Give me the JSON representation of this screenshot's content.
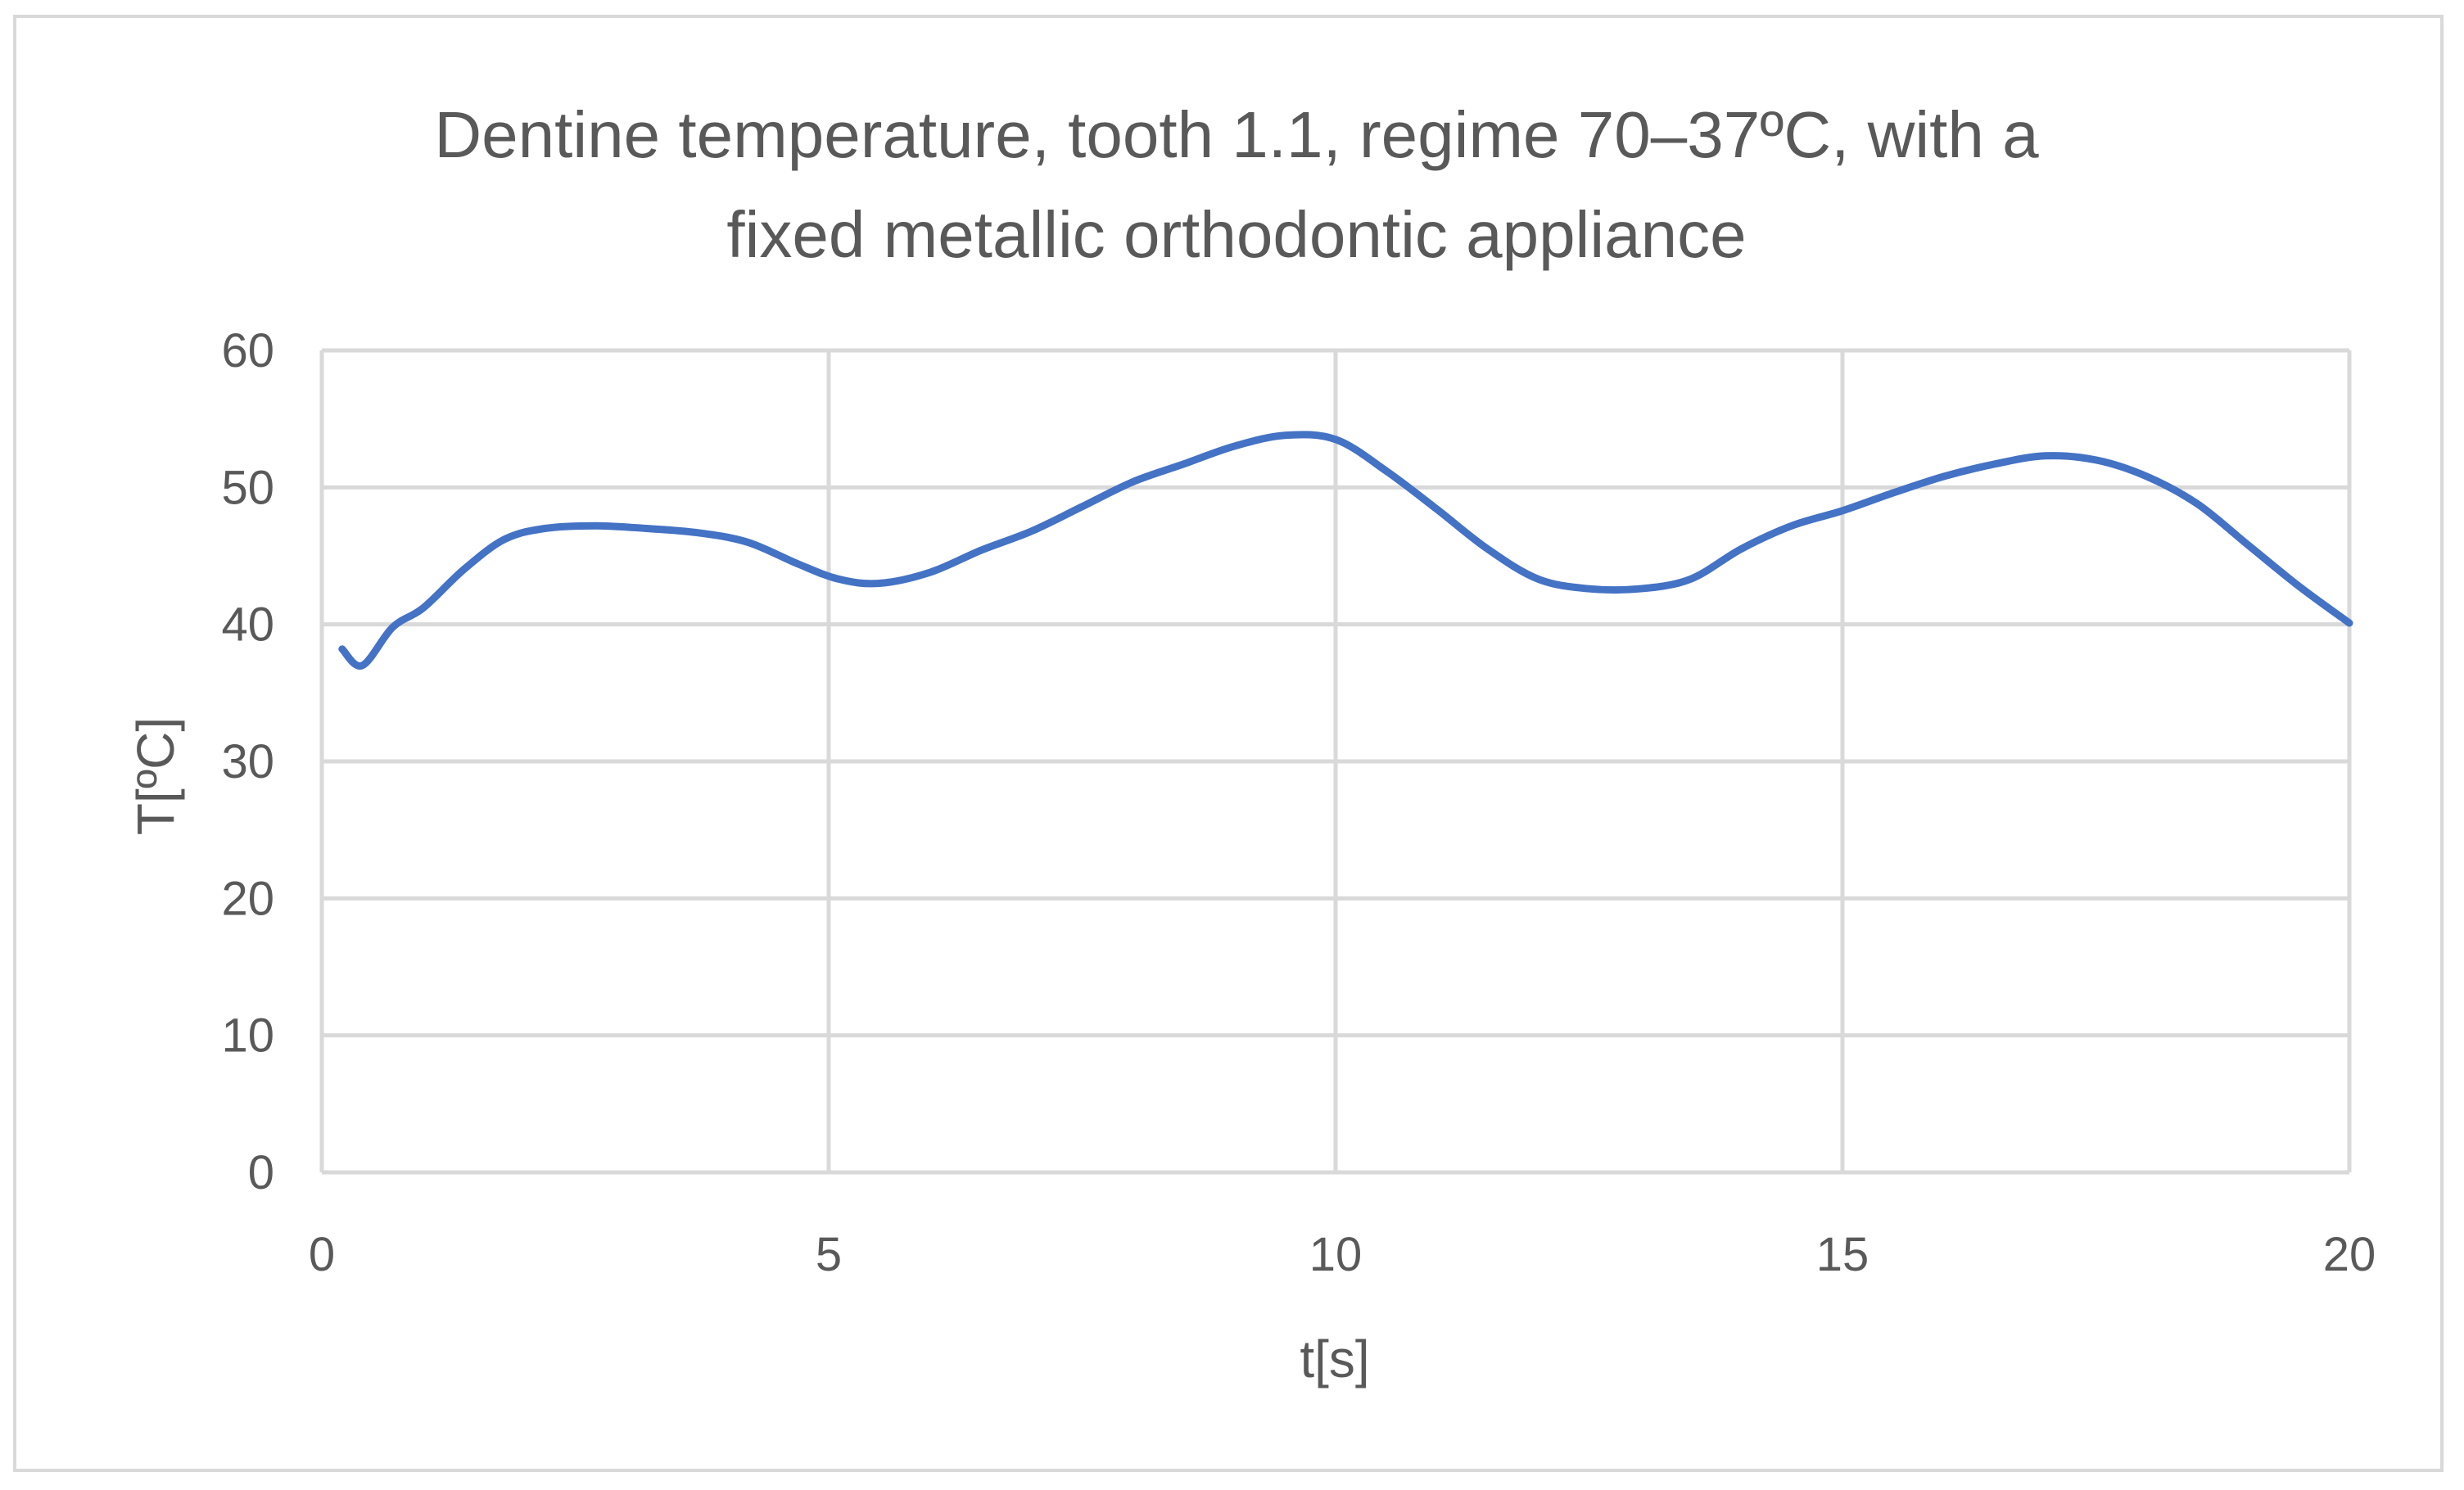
{
  "chart_data": {
    "type": "line",
    "title_lines": [
      "Dentine temperature, tooth 1.1, regime 70–37ºC, with a",
      "fixed metallic orthodontic appliance"
    ],
    "xlabel": "t[s]",
    "ylabel": "T[ºC]",
    "xlim": [
      0,
      20
    ],
    "ylim": [
      0,
      60
    ],
    "xticks": [
      0,
      5,
      10,
      15,
      20
    ],
    "yticks": [
      0,
      10,
      20,
      30,
      40,
      50,
      60
    ],
    "grid": true,
    "legend": "none",
    "line_color": "#4472c4",
    "grid_color": "#d9d9d9",
    "text_color": "#595959",
    "series": [
      {
        "x": [
          0.2,
          0.4,
          0.7,
          1.0,
          1.4,
          1.8,
          2.2,
          2.7,
          3.2,
          3.7,
          4.2,
          4.7,
          5.1,
          5.5,
          6.0,
          6.5,
          7.0,
          7.5,
          8.0,
          8.5,
          9.0,
          9.5,
          10.0,
          10.5,
          11.0,
          11.5,
          12.0,
          12.5,
          13.0,
          13.5,
          14.0,
          14.5,
          15.0,
          15.5,
          16.0,
          16.5,
          17.0,
          17.5,
          18.0,
          18.5,
          19.0,
          19.5,
          20.0
        ],
        "y": [
          38.2,
          37.0,
          39.8,
          41.2,
          44.0,
          46.2,
          47.0,
          47.2,
          47.0,
          46.7,
          46.0,
          44.4,
          43.3,
          43.0,
          43.8,
          45.4,
          46.8,
          48.6,
          50.4,
          51.7,
          53.0,
          53.8,
          53.5,
          51.2,
          48.4,
          45.5,
          43.3,
          42.6,
          42.6,
          43.3,
          45.5,
          47.2,
          48.3,
          49.6,
          50.8,
          51.7,
          52.3,
          52.0,
          50.8,
          48.8,
          45.8,
          42.8,
          40.1
        ]
      }
    ]
  }
}
